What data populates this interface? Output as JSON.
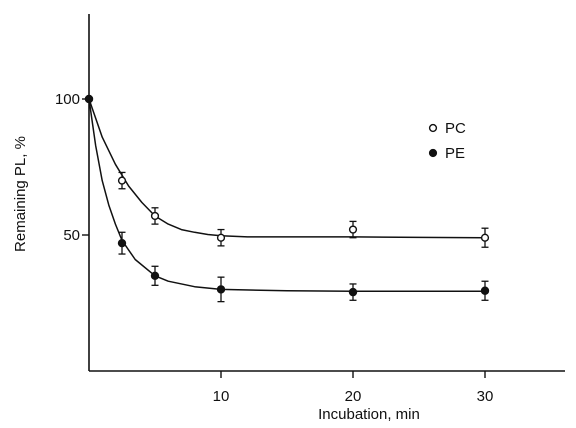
{
  "chart_data": {
    "type": "scatter",
    "xlabel": "Incubation, min",
    "ylabel": "Remaining PL, %",
    "xlim": [
      0,
      32
    ],
    "ylim": [
      0,
      120
    ],
    "x_ticks": [
      10,
      20,
      30
    ],
    "x_tick_labels": [
      "10",
      "20",
      "30"
    ],
    "y_ticks": [
      50,
      100
    ],
    "y_tick_labels": [
      "50",
      "100"
    ],
    "grid": false,
    "legend_position": "top-right",
    "series": [
      {
        "name": "PC",
        "marker": "open-circle",
        "x": [
          0,
          2.5,
          5,
          10,
          20,
          30
        ],
        "y": [
          100,
          70,
          57,
          49,
          52,
          49
        ],
        "error": [
          0,
          3,
          3,
          3,
          3,
          3.5
        ],
        "fit": [
          [
            0,
            100
          ],
          [
            1,
            86
          ],
          [
            2,
            76
          ],
          [
            3,
            68
          ],
          [
            4,
            62
          ],
          [
            5,
            57
          ],
          [
            6,
            54
          ],
          [
            7,
            52
          ],
          [
            8,
            51
          ],
          [
            9,
            50.2
          ],
          [
            10,
            49.7
          ],
          [
            12,
            49.3
          ],
          [
            15,
            49.3
          ],
          [
            20,
            49.3
          ],
          [
            25,
            49.1
          ],
          [
            30,
            49
          ]
        ]
      },
      {
        "name": "PE",
        "marker": "filled-circle",
        "x": [
          0,
          2.5,
          5,
          10,
          20,
          30
        ],
        "y": [
          100,
          47,
          35,
          30,
          29,
          29.5
        ],
        "error": [
          0,
          4,
          3.5,
          4.5,
          3,
          3.5
        ],
        "fit": [
          [
            0,
            100
          ],
          [
            0.5,
            83
          ],
          [
            1,
            70
          ],
          [
            1.5,
            61
          ],
          [
            2,
            54
          ],
          [
            2.5,
            48
          ],
          [
            3.5,
            41
          ],
          [
            5,
            35
          ],
          [
            6,
            33
          ],
          [
            8,
            31
          ],
          [
            10,
            30
          ],
          [
            15,
            29.5
          ],
          [
            20,
            29.3
          ],
          [
            30,
            29.3
          ]
        ]
      }
    ]
  },
  "colors": {
    "ink": "#111111",
    "background": "#ffffff"
  }
}
